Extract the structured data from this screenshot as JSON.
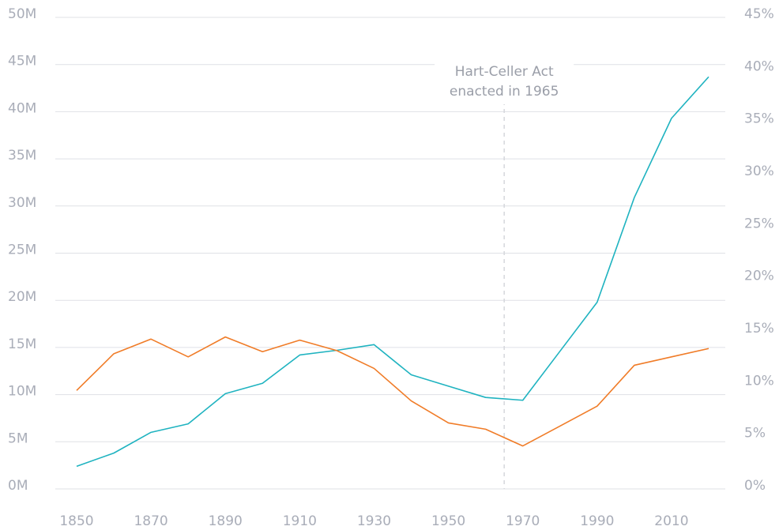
{
  "chart_data": {
    "type": "line",
    "x": [
      1850,
      1860,
      1870,
      1880,
      1890,
      1900,
      1910,
      1920,
      1930,
      1940,
      1950,
      1960,
      1970,
      1980,
      1990,
      2000,
      2010,
      2020
    ],
    "series": [
      {
        "color": "#1fb3c0",
        "axis": "y",
        "values": [
          2.4,
          3.8,
          6.0,
          6.9,
          10.1,
          11.2,
          14.2,
          14.7,
          15.3,
          12.1,
          10.9,
          9.7,
          9.4,
          14.6,
          19.8,
          30.9,
          39.3,
          43.7
        ]
      },
      {
        "color": "#f07c28",
        "axis": "y2",
        "values": [
          9.4,
          12.9,
          14.3,
          12.6,
          14.5,
          13.1,
          14.2,
          13.2,
          11.5,
          8.4,
          6.3,
          5.7,
          4.1,
          6.0,
          7.9,
          11.8,
          12.6,
          13.4
        ]
      }
    ],
    "xlim": [
      1850,
      2020
    ],
    "xticks": [
      1850,
      1870,
      1890,
      1910,
      1930,
      1950,
      1970,
      1990,
      2010
    ],
    "ylim": [
      0,
      50
    ],
    "yticks": [
      {
        "value": 0,
        "label": "0M"
      },
      {
        "value": 5,
        "label": "5M"
      },
      {
        "value": 10,
        "label": "10M"
      },
      {
        "value": 15,
        "label": "15M"
      },
      {
        "value": 20,
        "label": "20M"
      },
      {
        "value": 25,
        "label": "25M"
      },
      {
        "value": 30,
        "label": "30M"
      },
      {
        "value": 35,
        "label": "35M"
      },
      {
        "value": 40,
        "label": "40M"
      },
      {
        "value": 45,
        "label": "45M"
      },
      {
        "value": 50,
        "label": "50M"
      }
    ],
    "y2lim": [
      0,
      45
    ],
    "y2ticks": [
      {
        "value": 0,
        "label": "0%"
      },
      {
        "value": 5,
        "label": "5%"
      },
      {
        "value": 10,
        "label": "10%"
      },
      {
        "value": 15,
        "label": "15%"
      },
      {
        "value": 20,
        "label": "20%"
      },
      {
        "value": 25,
        "label": "25%"
      },
      {
        "value": 30,
        "label": "30%"
      },
      {
        "value": 35,
        "label": "35%"
      },
      {
        "value": 40,
        "label": "40%"
      },
      {
        "value": 45,
        "label": "45%"
      }
    ],
    "grid": true,
    "annotation": {
      "x": 1965,
      "text": [
        "Hart-Celler Act",
        "enacted in 1965"
      ]
    }
  }
}
